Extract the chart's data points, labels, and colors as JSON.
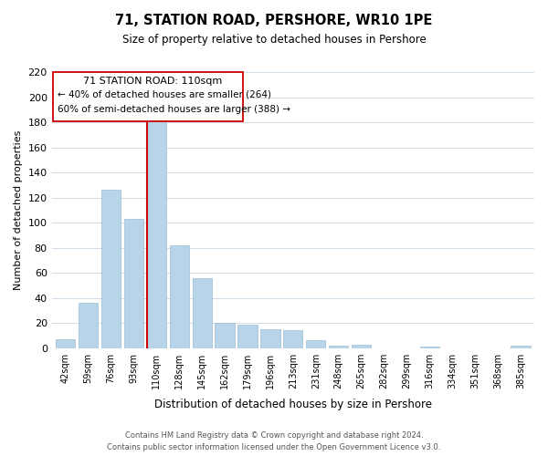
{
  "title": "71, STATION ROAD, PERSHORE, WR10 1PE",
  "subtitle": "Size of property relative to detached houses in Pershore",
  "xlabel": "Distribution of detached houses by size in Pershore",
  "ylabel": "Number of detached properties",
  "categories": [
    "42sqm",
    "59sqm",
    "76sqm",
    "93sqm",
    "110sqm",
    "128sqm",
    "145sqm",
    "162sqm",
    "179sqm",
    "196sqm",
    "213sqm",
    "231sqm",
    "248sqm",
    "265sqm",
    "282sqm",
    "299sqm",
    "316sqm",
    "334sqm",
    "351sqm",
    "368sqm",
    "385sqm"
  ],
  "values": [
    7,
    36,
    126,
    103,
    182,
    82,
    56,
    20,
    19,
    15,
    14,
    6,
    2,
    3,
    0,
    0,
    1,
    0,
    0,
    0,
    2
  ],
  "bar_color": "#b8d4e8",
  "bar_edge_color": "#9bbdd4",
  "highlight_index": 4,
  "highlight_line_color": "#cc0000",
  "ylim": [
    0,
    220
  ],
  "yticks": [
    0,
    20,
    40,
    60,
    80,
    100,
    120,
    140,
    160,
    180,
    200,
    220
  ],
  "annotation_title": "71 STATION ROAD: 110sqm",
  "annotation_line1": "← 40% of detached houses are smaller (264)",
  "annotation_line2": "60% of semi-detached houses are larger (388) →",
  "footer1": "Contains HM Land Registry data © Crown copyright and database right 2024.",
  "footer2": "Contains public sector information licensed under the Open Government Licence v3.0.",
  "background_color": "#ffffff",
  "grid_color": "#d0dce8"
}
